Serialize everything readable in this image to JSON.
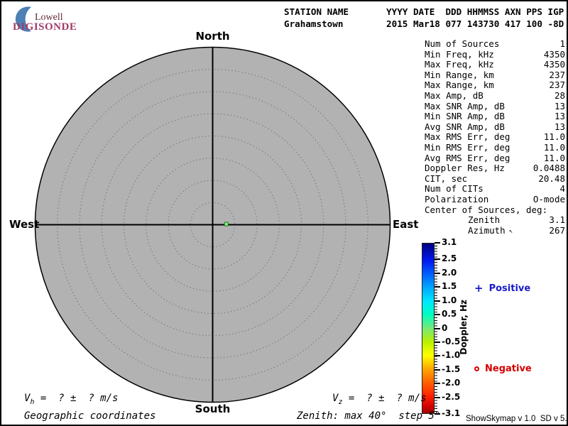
{
  "logo": {
    "brand_top": "Lowell",
    "brand_bottom": "DIGISONDE",
    "crescent_color": "#4e80b4",
    "brand_top_color": "#5f2a33",
    "brand_bottom_color": "#a13a68"
  },
  "header": {
    "line1": "STATION NAME       YYYY DATE  DDD HHMMSS AXN PPS IGP",
    "line2": "Grahamstown        2015 Mar18 077 143730 417 100 -8D",
    "station_name": "Grahamstown",
    "year": "2015",
    "date": "Mar18",
    "ddd": "077",
    "hhmmss": "143730",
    "axn": "417",
    "pps": "100",
    "igp": "-8D"
  },
  "panel": {
    "rows": [
      {
        "label": "Num of Sources",
        "value": "1"
      },
      {
        "label": "Min Freq, kHz",
        "value": "4350"
      },
      {
        "label": "Max Freq, kHz",
        "value": "4350"
      },
      {
        "label": "Min Range, km",
        "value": "237"
      },
      {
        "label": "Max Range, km",
        "value": "237"
      },
      {
        "label": "Max Amp, dB",
        "value": "28"
      },
      {
        "label": "Max SNR Amp, dB",
        "value": "13"
      },
      {
        "label": "Min SNR Amp, dB",
        "value": "13"
      },
      {
        "label": "Avg SNR Amp, dB",
        "value": "13"
      },
      {
        "label": "Max RMS Err, deg",
        "value": "11.0"
      },
      {
        "label": "Min RMS Err, deg",
        "value": "11.0"
      },
      {
        "label": "Avg RMS Err, deg",
        "value": "11.0"
      },
      {
        "label": "Doppler Res, Hz",
        "value": "0.0488"
      },
      {
        "label": "CIT, sec",
        "value": "20.48"
      },
      {
        "label": "Num of CITs",
        "value": "4"
      },
      {
        "label": "Polarization",
        "value": "O-mode"
      },
      {
        "label": "Center of Sources, deg:",
        "value": ""
      },
      {
        "label": "Zenith",
        "value": "3.1",
        "indent": true
      },
      {
        "label": "Azimuth",
        "value": "267",
        "indent": true,
        "icon": "↖"
      }
    ]
  },
  "skymap": {
    "labels": {
      "north": "North",
      "south": "South",
      "east": "East",
      "west": "West"
    },
    "zenith_max_deg": 40,
    "ring_step_deg": 5,
    "source": {
      "zenith_deg": 3.1,
      "azimuth_deg": 267,
      "screen_azimuth_deg": 87,
      "color": "#86f086",
      "doppler_sign": "positive"
    }
  },
  "colorbar": {
    "title": "Doppler, Hz",
    "max": 3.1,
    "min": -3.1,
    "ticks": [
      {
        "value": 3.1,
        "label": "3.1"
      },
      {
        "value": 2.5,
        "label": "2.5"
      },
      {
        "value": 2.0,
        "label": "2.0"
      },
      {
        "value": 1.5,
        "label": "1.5"
      },
      {
        "value": 1.0,
        "label": "1.0"
      },
      {
        "value": 0.5,
        "label": "0.5"
      },
      {
        "value": 0,
        "label": "0"
      },
      {
        "value": -0.5,
        "label": "-0.5"
      },
      {
        "value": -1.0,
        "label": "-1.0"
      },
      {
        "value": -1.5,
        "label": "-1.5"
      },
      {
        "value": -2.0,
        "label": "-2.0"
      },
      {
        "value": -2.5,
        "label": "-2.5"
      },
      {
        "value": -3.1,
        "label": "-3.1"
      }
    ],
    "gradient": [
      "#000080 0%",
      "#0018ee 10%",
      "#0060ff 18%",
      "#00a8ff 26%",
      "#00e8ff 34%",
      "#00ffc0 42%",
      "#78e878 50%",
      "#b8f000 58%",
      "#ffff00 66%",
      "#ffa500 74%",
      "#ff6000 82%",
      "#ff2000 90%",
      "#d00000 96%",
      "#a00000 100%"
    ]
  },
  "markers": {
    "positive": {
      "symbol": "+",
      "label": "Positive",
      "color": "#1a1acc"
    },
    "negative": {
      "label": "Negative",
      "color": "#d40000"
    }
  },
  "footer": {
    "vh_prefix": "V",
    "vh_sub": "h",
    "vh_rest": " =  ? ±  ? m/s",
    "vz_prefix": "V",
    "vz_sub": "z",
    "vz_rest": " =  ? ±  ? m/s",
    "coordinates_note": "Geographic coordinates",
    "zenith_note": "Zenith: max 40°  step 5°",
    "version": "ShowSkymap v 1.0  SD v 5.1"
  }
}
